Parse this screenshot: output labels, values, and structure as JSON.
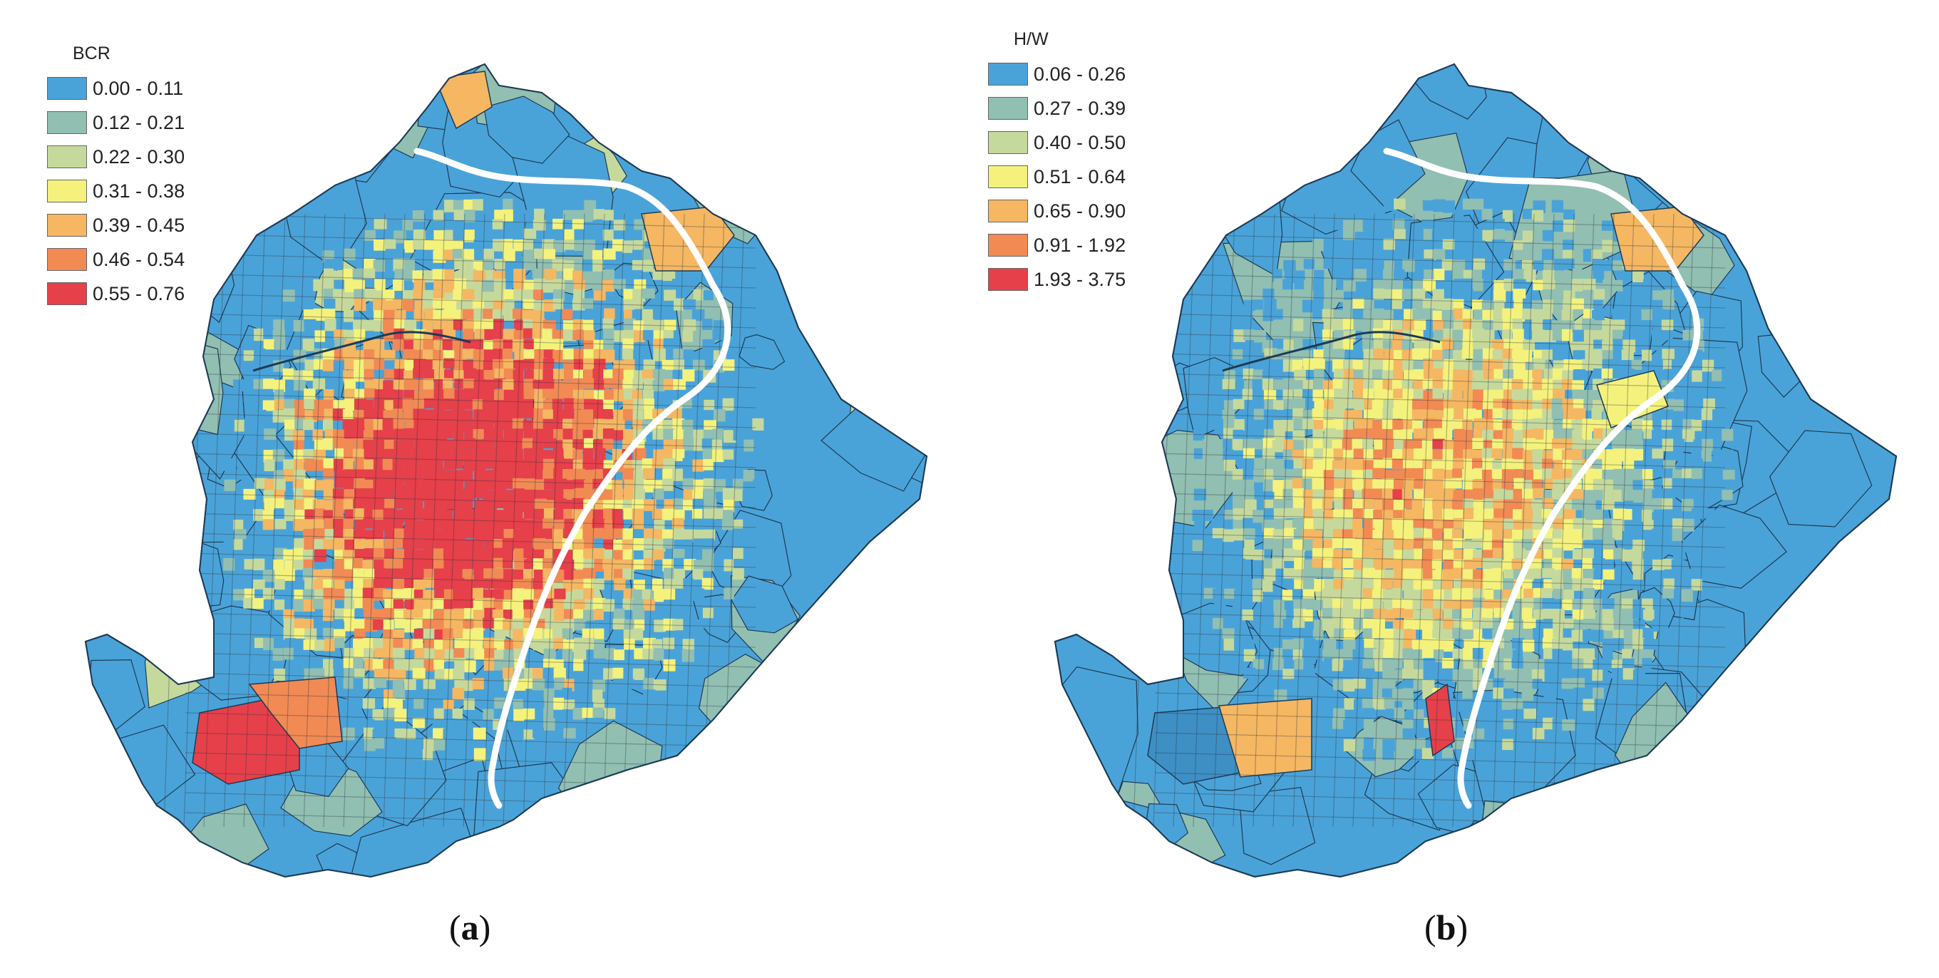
{
  "panels": [
    {
      "legend_title": "BCR",
      "classes": [
        {
          "label": "0.00 - 0.11",
          "color": "#4aa3d8"
        },
        {
          "label": "0.12 - 0.21",
          "color": "#91bfb2"
        },
        {
          "label": "0.22 - 0.30",
          "color": "#c6d99c"
        },
        {
          "label": "0.31 - 0.38",
          "color": "#f4f27c"
        },
        {
          "label": "0.39 - 0.45",
          "color": "#f5b762"
        },
        {
          "label": "0.46 - 0.54",
          "color": "#f28a54"
        },
        {
          "label": "0.55 - 0.76",
          "color": "#e6404a"
        }
      ],
      "caption_open": "(",
      "caption_letter": "a",
      "caption_close": ")"
    },
    {
      "legend_title": "H/W",
      "classes": [
        {
          "label": "0.06 - 0.26",
          "color": "#4aa3d8"
        },
        {
          "label": "0.27 - 0.39",
          "color": "#91bfb2"
        },
        {
          "label": "0.40 - 0.50",
          "color": "#c6d99c"
        },
        {
          "label": "0.51 - 0.64",
          "color": "#f4f27c"
        },
        {
          "label": "0.65 - 0.90",
          "color": "#f5b762"
        },
        {
          "label": "0.91 - 1.92",
          "color": "#f28a54"
        },
        {
          "label": "1.93 - 3.75",
          "color": "#e6404a"
        }
      ],
      "caption_open": "(",
      "caption_letter": "b",
      "caption_close": ")"
    }
  ]
}
